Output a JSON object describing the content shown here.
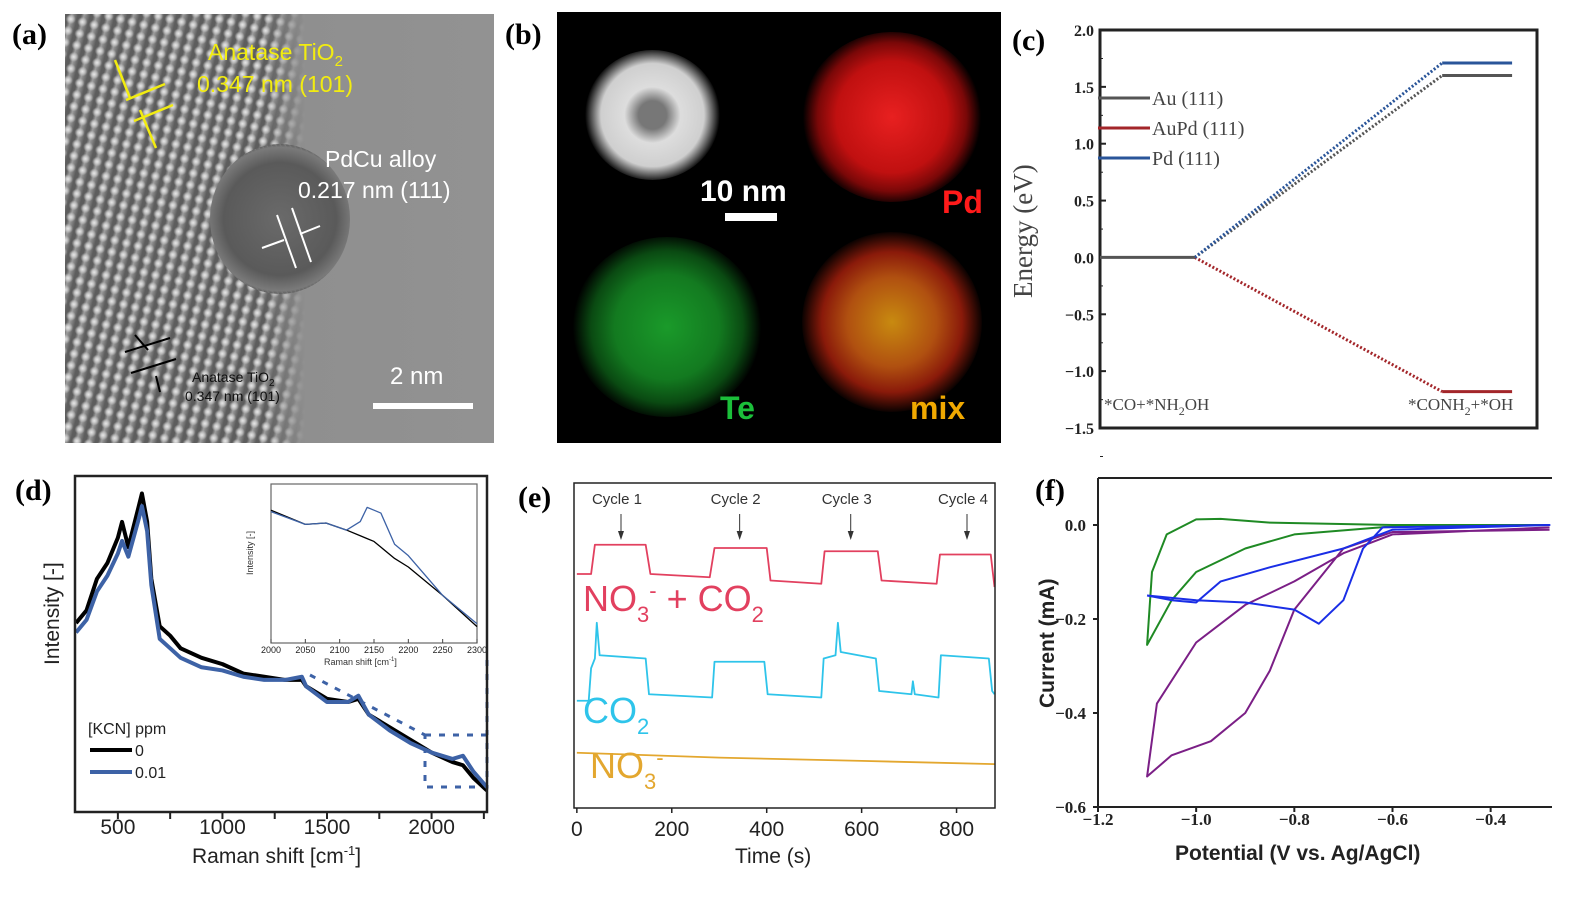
{
  "panels": {
    "a": {
      "label": "(a)",
      "anatase_top": [
        "Anatase TiO",
        "2"
      ],
      "anatase_top_d": "0.347 nm (101)",
      "alloy": "PdCu alloy",
      "alloy_d": "0.217 nm (111)",
      "anatase_bottom": [
        "Anatase TiO",
        "2"
      ],
      "anatase_bottom_d": "0.347 nm (101)",
      "scale": "2 nm",
      "colors": {
        "top_annotation": "#f2ec10",
        "alloy_annotation": "#ffffff"
      }
    },
    "b": {
      "label": "(b)",
      "scale": "10 nm",
      "pd": "Pd",
      "te": "Te",
      "mix": "mix",
      "colors": {
        "pd": "#ff1a1a",
        "te": "#1bbf3a",
        "mix": "#f0a800"
      }
    },
    "c": {
      "label": "(c)"
    },
    "d": {
      "label": "(d)"
    },
    "e": {
      "label": "(e)"
    },
    "f": {
      "label": "(f)"
    }
  },
  "chart_data": [
    {
      "panel": "c",
      "type": "line",
      "ylabel": "Energy (eV)",
      "ylim": [
        -1.5,
        2.0
      ],
      "yticks": [
        "2.0",
        "1.5",
        "1.0",
        "0.5",
        "0.0",
        "−0.5",
        "−1.0",
        "−1.5"
      ],
      "states": [
        [
          "*CO+*NH",
          "2",
          "OH"
        ],
        [
          "*CONH",
          "2",
          "+*OH"
        ]
      ],
      "legend_placement": "top-left",
      "series": [
        {
          "name": "Au (111)",
          "values": [
            0,
            1.6
          ],
          "color": "#555555"
        },
        {
          "name": "AuPd (111)",
          "values": [
            0,
            -1.18
          ],
          "color": "#a3262a"
        },
        {
          "name": "Pd (111)",
          "values": [
            0,
            1.71
          ],
          "color": "#2a5599"
        }
      ]
    },
    {
      "panel": "d",
      "type": "line",
      "xlabel": [
        "Raman shift [cm",
        "-1",
        "]"
      ],
      "ylabel": "Intensity [-]",
      "xlim": [
        295,
        2265
      ],
      "xticks": [
        500,
        1000,
        1500,
        2000
      ],
      "legend_title": "[KCN] ppm",
      "legend_placement": "bottom-left",
      "x": [
        300,
        350,
        400,
        450,
        500,
        520,
        550,
        600,
        615,
        640,
        660,
        700,
        750,
        800,
        900,
        1000,
        1100,
        1200,
        1300,
        1380,
        1400,
        1500,
        1600,
        1650,
        1700,
        1800,
        1900,
        2000,
        2100,
        2150,
        2200,
        2265
      ],
      "series": [
        {
          "name": "0",
          "color": "#000000",
          "values": [
            56,
            60,
            70,
            75,
            83,
            88,
            80,
            93,
            97,
            88,
            70,
            55,
            52,
            48,
            45,
            43,
            40,
            39,
            38,
            38,
            36,
            32,
            31,
            32,
            27,
            23,
            19,
            15,
            12,
            11,
            7,
            3
          ]
        },
        {
          "name": "0.01",
          "color": "#3d62a6",
          "values": [
            53,
            57,
            66,
            71,
            78,
            82,
            77,
            89,
            93,
            85,
            68,
            51,
            48,
            45,
            42,
            41,
            39,
            38,
            38,
            39,
            36,
            31,
            31,
            33,
            27,
            22,
            18,
            15,
            13,
            14,
            9,
            4
          ]
        }
      ],
      "inset": {
        "xlabel": [
          "Raman shift [cm",
          "-1",
          "]"
        ],
        "ylabel": "Intensity [-]",
        "xlim": [
          2000,
          2300
        ],
        "xticks": [
          2000,
          2050,
          2100,
          2150,
          2200,
          2250,
          2300
        ],
        "x": [
          2000,
          2050,
          2080,
          2110,
          2130,
          2140,
          2150,
          2160,
          2180,
          2200,
          2250,
          2300
        ],
        "series": [
          {
            "name": "0",
            "color": "#000000",
            "values": [
              90,
              80,
              81,
              76,
              72,
              70,
              68,
              64,
              56,
              50,
              30,
              8
            ]
          },
          {
            "name": "0.01",
            "color": "#3d62a6",
            "values": [
              89,
              80,
              81,
              76,
              82,
              92,
              90,
              88,
              66,
              58,
              30,
              10
            ]
          }
        ]
      }
    },
    {
      "panel": "e",
      "type": "line",
      "xlabel": "Time (s)",
      "xlim": [
        -6,
        881
      ],
      "xticks": [
        0,
        200,
        400,
        600,
        800
      ],
      "annotations": [
        {
          "text": "Cycle 1",
          "t": 93
        },
        {
          "text": "Cycle 2",
          "t": 343
        },
        {
          "text": "Cycle 3",
          "t": 577
        },
        {
          "text": "Cycle 4",
          "t": 822
        }
      ],
      "series": [
        {
          "name": [
            "NO",
            "3",
            "-",
            " + CO",
            "2"
          ],
          "color": "#e2405f",
          "points": [
            [
              0,
              72
            ],
            [
              30,
              72
            ],
            [
              38,
              81
            ],
            [
              145,
              81
            ],
            [
              155,
              72
            ],
            [
              280,
              71
            ],
            [
              290,
              80
            ],
            [
              400,
              80
            ],
            [
              408,
              70
            ],
            [
              515,
              69
            ],
            [
              522,
              79
            ],
            [
              634,
              79
            ],
            [
              642,
              70
            ],
            [
              758,
              69
            ],
            [
              765,
              78
            ],
            [
              872,
              78
            ],
            [
              880,
              68
            ]
          ]
        },
        {
          "name": [
            "CO",
            "2"
          ],
          "color": "#2ec4ea",
          "points": [
            [
              0,
              33
            ],
            [
              25,
              33
            ],
            [
              30,
              43
            ],
            [
              38,
              46
            ],
            [
              42,
              57
            ],
            [
              48,
              47
            ],
            [
              145,
              46
            ],
            [
              152,
              35
            ],
            [
              285,
              34
            ],
            [
              290,
              45
            ],
            [
              395,
              45
            ],
            [
              402,
              35
            ],
            [
              515,
              34
            ],
            [
              520,
              46
            ],
            [
              545,
              47
            ],
            [
              550,
              57
            ],
            [
              556,
              48
            ],
            [
              630,
              46
            ],
            [
              637,
              36
            ],
            [
              705,
              35
            ],
            [
              708,
              39
            ],
            [
              712,
              35
            ],
            [
              762,
              34
            ],
            [
              767,
              47
            ],
            [
              868,
              46
            ],
            [
              875,
              36
            ],
            [
              880,
              35
            ]
          ]
        },
        {
          "name": [
            "NO",
            "3",
            "-"
          ],
          "color": "#e3a72f",
          "points": [
            [
              0,
              17
            ],
            [
              300,
              15.5
            ],
            [
              600,
              14.5
            ],
            [
              880,
              13.5
            ]
          ]
        }
      ]
    },
    {
      "panel": "f",
      "type": "line",
      "xlabel": "Potential (V vs. Ag/AgCl)",
      "ylabel": "Current (mA)",
      "xlim": [
        -1.2,
        -0.275
      ],
      "ylim": [
        -0.6,
        0.1
      ],
      "xticks": [
        "−1.2",
        "−1.0",
        "−0.8",
        "−0.6",
        "−0.4"
      ],
      "xtick_values": [
        -1.2,
        -1.0,
        -0.8,
        -0.6,
        -0.4
      ],
      "yticks": [
        "0.0",
        "−0.2",
        "−0.4",
        "−0.6"
      ],
      "ytick_values": [
        0,
        -0.2,
        -0.4,
        -0.6
      ],
      "series": [
        {
          "color": "#1f8a24",
          "points": [
            [
              -0.28,
              0
            ],
            [
              -0.6,
              -0.003
            ],
            [
              -0.8,
              -0.02
            ],
            [
              -0.9,
              -0.05
            ],
            [
              -1.0,
              -0.1
            ],
            [
              -1.05,
              -0.16
            ],
            [
              -1.1,
              -0.255
            ],
            [
              -1.09,
              -0.1
            ],
            [
              -1.06,
              -0.02
            ],
            [
              -1.0,
              0.012
            ],
            [
              -0.95,
              0.013
            ],
            [
              -0.85,
              0.005
            ],
            [
              -0.6,
              0
            ],
            [
              -0.28,
              0
            ]
          ]
        },
        {
          "color": "#7b1f86",
          "points": [
            [
              -0.28,
              -0.01
            ],
            [
              -0.6,
              -0.015
            ],
            [
              -0.7,
              -0.05
            ],
            [
              -0.8,
              -0.18
            ],
            [
              -0.85,
              -0.31
            ],
            [
              -0.9,
              -0.4
            ],
            [
              -0.97,
              -0.46
            ],
            [
              -1.05,
              -0.49
            ],
            [
              -1.1,
              -0.535
            ],
            [
              -1.08,
              -0.38
            ],
            [
              -1.0,
              -0.25
            ],
            [
              -0.9,
              -0.17
            ],
            [
              -0.8,
              -0.12
            ],
            [
              -0.7,
              -0.06
            ],
            [
              -0.6,
              -0.02
            ],
            [
              -0.28,
              -0.005
            ]
          ]
        },
        {
          "color": "#1a2ee6",
          "points": [
            [
              -1.1,
              -0.15
            ],
            [
              -1.0,
              -0.16
            ],
            [
              -0.9,
              -0.165
            ],
            [
              -0.8,
              -0.18
            ],
            [
              -0.75,
              -0.21
            ],
            [
              -0.7,
              -0.16
            ],
            [
              -0.66,
              -0.05
            ],
            [
              -0.62,
              -0.005
            ],
            [
              -0.28,
              0
            ],
            [
              -0.6,
              -0.01
            ],
            [
              -0.7,
              -0.05
            ],
            [
              -0.85,
              -0.09
            ],
            [
              -0.95,
              -0.12
            ],
            [
              -1.0,
              -0.165
            ],
            [
              -1.05,
              -0.16
            ],
            [
              -1.1,
              -0.15
            ]
          ]
        }
      ]
    }
  ]
}
